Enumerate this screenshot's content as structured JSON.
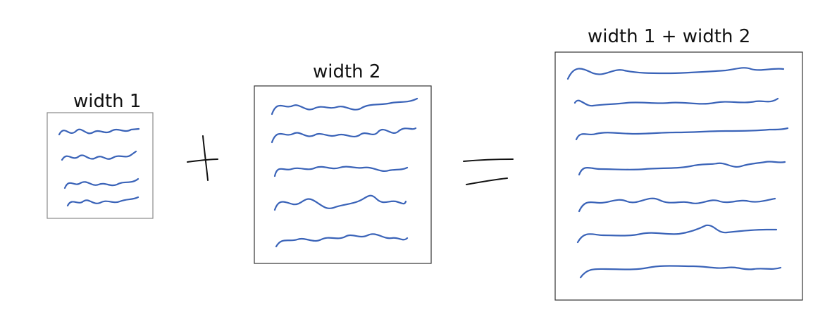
{
  "labels": {
    "box1": "width 1",
    "box2": "width 2",
    "box3": "width 1 + width 2"
  },
  "operators": {
    "plus": "plus-sign",
    "equals": "equals-sign"
  },
  "colors": {
    "scribble": "#3a63b8",
    "box_border": "#333333",
    "box1_border": "#8a8a8a",
    "text": "#111111"
  }
}
